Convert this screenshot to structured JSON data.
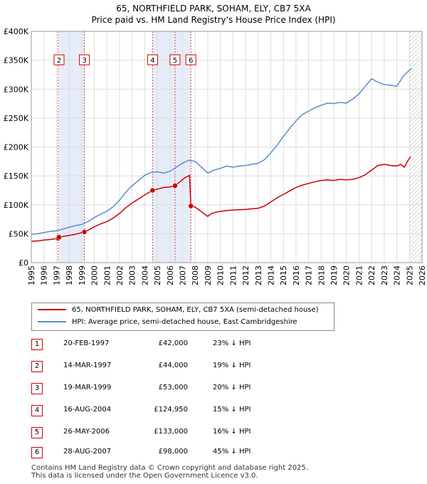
{
  "header": {
    "title": "65, NORTHFIELD PARK, SOHAM, ELY, CB7 5XA",
    "subtitle": "Price paid vs. HM Land Registry's House Price Index (HPI)"
  },
  "colors": {
    "property_line": "#cc0000",
    "hpi_line": "#5b8bd0",
    "shade": "#e6ecf8",
    "sale_marker_border": "#cc0000",
    "grid": "#dddddd"
  },
  "legend": {
    "property_label": "65, NORTHFIELD PARK, SOHAM, ELY, CB7 5XA (semi-detached house)",
    "hpi_label": "HPI: Average price, semi-detached house, East Cambridgeshire"
  },
  "transactions": [
    {
      "num": "1",
      "date": "20-FEB-1997",
      "price": "£42,000",
      "hpi": "23% ↓ HPI"
    },
    {
      "num": "2",
      "date": "14-MAR-1997",
      "price": "£44,000",
      "hpi": "19% ↓ HPI"
    },
    {
      "num": "3",
      "date": "19-MAR-1999",
      "price": "£53,000",
      "hpi": "20% ↓ HPI"
    },
    {
      "num": "4",
      "date": "16-AUG-2004",
      "price": "£124,950",
      "hpi": "15% ↓ HPI"
    },
    {
      "num": "5",
      "date": "26-MAY-2006",
      "price": "£133,000",
      "hpi": "16% ↓ HPI"
    },
    {
      "num": "6",
      "date": "28-AUG-2007",
      "price": "£98,000",
      "hpi": "45% ↓ HPI"
    }
  ],
  "footer": {
    "line1": "Contains HM Land Registry data © Crown copyright and database right 2025.",
    "line2": "This data is licensed under the Open Government Licence v3.0."
  },
  "chart_data": {
    "type": "line",
    "title": "65, NORTHFIELD PARK, SOHAM, ELY, CB7 5XA",
    "subtitle": "Price paid vs. HM Land Registry's House Price Index (HPI)",
    "xlabel": "",
    "ylabel": "",
    "xlim": [
      1995,
      2026
    ],
    "ylim": [
      0,
      400000
    ],
    "x_ticks": [
      1995,
      1996,
      1997,
      1998,
      1999,
      2000,
      2001,
      2002,
      2003,
      2004,
      2005,
      2006,
      2007,
      2008,
      2009,
      2010,
      2011,
      2012,
      2013,
      2014,
      2015,
      2016,
      2017,
      2018,
      2019,
      2020,
      2021,
      2022,
      2023,
      2024,
      2025,
      2026
    ],
    "y_ticks": [
      0,
      50000,
      100000,
      150000,
      200000,
      250000,
      300000,
      350000,
      400000
    ],
    "y_tick_labels": [
      "£0",
      "£50K",
      "£100K",
      "£150K",
      "£200K",
      "£250K",
      "£300K",
      "£350K",
      "£400K"
    ],
    "grid": true,
    "legend_position": "below chart",
    "shaded_ranges": [
      [
        1997.21,
        1999.21
      ],
      [
        2004.62,
        2006.4
      ],
      [
        2006.4,
        2007.66
      ]
    ],
    "forecast_hatch_from": 2025.0,
    "series": [
      {
        "name": "65, NORTHFIELD PARK, SOHAM, ELY, CB7 5XA (semi-detached house)",
        "color": "#cc0000",
        "x": [
          1995.0,
          1995.5,
          1996.0,
          1996.5,
          1997.13,
          1997.2,
          1997.6,
          1998.0,
          1998.5,
          1999.21,
          1999.6,
          2000.0,
          2000.5,
          2001.0,
          2001.5,
          2002.0,
          2002.5,
          2003.0,
          2003.5,
          2004.0,
          2004.62,
          2005.0,
          2005.5,
          2006.0,
          2006.4,
          2006.8,
          2007.2,
          2007.55,
          2007.66,
          2008.0,
          2008.5,
          2009.0,
          2009.3,
          2009.8,
          2010.5,
          2011.0,
          2011.5,
          2012.0,
          2012.5,
          2013.0,
          2013.5,
          2014.0,
          2014.5,
          2015.0,
          2015.5,
          2016.0,
          2016.5,
          2017.0,
          2017.5,
          2018.0,
          2018.5,
          2019.0,
          2019.5,
          2020.0,
          2020.5,
          2021.0,
          2021.5,
          2022.0,
          2022.5,
          2023.0,
          2023.5,
          2024.0,
          2024.3,
          2024.6,
          2024.9,
          2025.1
        ],
        "values": [
          37000,
          37500,
          39000,
          40000,
          42000,
          44000,
          45500,
          47000,
          49000,
          53000,
          57000,
          62000,
          67000,
          71000,
          77000,
          85000,
          95000,
          103000,
          110000,
          117000,
          124950,
          127000,
          130000,
          131000,
          133000,
          140000,
          147000,
          151000,
          98000,
          96000,
          88000,
          80000,
          85000,
          88000,
          90000,
          91000,
          91500,
          92000,
          93000,
          94000,
          98000,
          105000,
          112000,
          118000,
          124000,
          130000,
          134000,
          137000,
          140000,
          142000,
          143000,
          142000,
          144000,
          143000,
          144000,
          147000,
          152000,
          160000,
          168000,
          170000,
          168000,
          167000,
          170000,
          165000,
          177000,
          183000
        ]
      },
      {
        "name": "HPI: Average price, semi-detached house, East Cambridgeshire",
        "color": "#5b8bd0",
        "x": [
          1995.0,
          1995.5,
          1996.0,
          1996.5,
          1997.0,
          1997.5,
          1998.0,
          1998.5,
          1999.0,
          1999.5,
          2000.0,
          2000.5,
          2001.0,
          2001.5,
          2002.0,
          2002.5,
          2003.0,
          2003.5,
          2004.0,
          2004.5,
          2005.0,
          2005.5,
          2006.0,
          2006.5,
          2007.0,
          2007.5,
          2008.0,
          2008.5,
          2009.0,
          2009.5,
          2010.0,
          2010.5,
          2011.0,
          2011.5,
          2012.0,
          2012.5,
          2013.0,
          2013.5,
          2014.0,
          2014.5,
          2015.0,
          2015.5,
          2016.0,
          2016.5,
          2017.0,
          2017.5,
          2018.0,
          2018.5,
          2019.0,
          2019.5,
          2020.0,
          2020.5,
          2021.0,
          2021.5,
          2022.0,
          2022.5,
          2023.0,
          2023.5,
          2024.0,
          2024.5,
          2025.0,
          2025.2
        ],
        "values": [
          49000,
          50000,
          52000,
          54000,
          55000,
          58000,
          61000,
          64000,
          66000,
          71000,
          78000,
          84000,
          89000,
          97000,
          108000,
          122000,
          133000,
          142000,
          151000,
          156000,
          157000,
          155000,
          158000,
          165000,
          172000,
          177000,
          175000,
          165000,
          155000,
          160000,
          163000,
          167000,
          165000,
          167000,
          168000,
          170000,
          172000,
          178000,
          190000,
          203000,
          218000,
          232000,
          245000,
          256000,
          262000,
          268000,
          272000,
          276000,
          275000,
          277000,
          276000,
          283000,
          292000,
          305000,
          318000,
          312000,
          308000,
          307000,
          305000,
          322000,
          333000,
          336000
        ]
      }
    ],
    "sale_markers": [
      {
        "label": "1",
        "x": 1997.13,
        "value": 42000
      },
      {
        "label": "2",
        "x": 1997.2,
        "value": 44000
      },
      {
        "label": "3",
        "x": 1999.21,
        "value": 53000
      },
      {
        "label": "4",
        "x": 2004.62,
        "value": 124950
      },
      {
        "label": "5",
        "x": 2006.4,
        "value": 133000
      },
      {
        "label": "6",
        "x": 2007.66,
        "value": 98000
      }
    ],
    "box_labels": [
      "2",
      "3",
      "4",
      "5",
      "6"
    ]
  }
}
